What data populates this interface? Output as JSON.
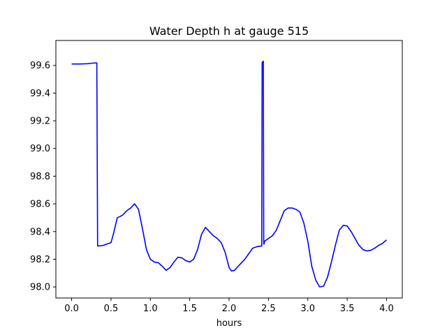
{
  "chart_data": {
    "type": "line",
    "title": "Water Depth h at gauge 515",
    "xlabel": "hours",
    "ylabel": "",
    "xlim": [
      -0.2,
      4.2
    ],
    "ylim": [
      97.92,
      99.78
    ],
    "xticks": [
      0.0,
      0.5,
      1.0,
      1.5,
      2.0,
      2.5,
      3.0,
      3.5,
      4.0
    ],
    "xtick_labels": [
      "0.0",
      "0.5",
      "1.0",
      "1.5",
      "2.0",
      "2.5",
      "3.0",
      "3.5",
      "4.0"
    ],
    "yticks": [
      98.0,
      98.2,
      98.4,
      98.6,
      98.8,
      99.0,
      99.2,
      99.4,
      99.6
    ],
    "ytick_labels": [
      "98.0",
      "98.2",
      "98.4",
      "98.6",
      "98.8",
      "99.0",
      "99.2",
      "99.4",
      "99.6"
    ],
    "grid": false,
    "series": [
      {
        "color": "#0000ff",
        "x": [
          0.0,
          0.1,
          0.2,
          0.3,
          0.32,
          0.33,
          0.4,
          0.45,
          0.5,
          0.53,
          0.58,
          0.62,
          0.65,
          0.7,
          0.75,
          0.8,
          0.85,
          0.9,
          0.95,
          1.0,
          1.05,
          1.1,
          1.15,
          1.2,
          1.25,
          1.3,
          1.35,
          1.4,
          1.45,
          1.5,
          1.55,
          1.6,
          1.65,
          1.7,
          1.75,
          1.8,
          1.85,
          1.9,
          1.95,
          2.0,
          2.03,
          2.07,
          2.1,
          2.15,
          2.2,
          2.25,
          2.3,
          2.35,
          2.4,
          2.415,
          2.42,
          2.425,
          2.435,
          2.44,
          2.445,
          2.45,
          2.5,
          2.55,
          2.6,
          2.65,
          2.7,
          2.75,
          2.8,
          2.85,
          2.9,
          2.95,
          3.0,
          3.05,
          3.1,
          3.15,
          3.2,
          3.25,
          3.3,
          3.35,
          3.4,
          3.45,
          3.5,
          3.55,
          3.6,
          3.65,
          3.7,
          3.75,
          3.8,
          3.85,
          3.9,
          3.95,
          4.0
        ],
        "values": [
          99.61,
          99.61,
          99.612,
          99.618,
          99.618,
          98.295,
          98.3,
          98.31,
          98.32,
          98.38,
          98.5,
          98.51,
          98.52,
          98.55,
          98.57,
          98.6,
          98.56,
          98.42,
          98.27,
          98.2,
          98.18,
          98.175,
          98.15,
          98.12,
          98.14,
          98.18,
          98.215,
          98.21,
          98.19,
          98.18,
          98.2,
          98.27,
          98.38,
          98.43,
          98.4,
          98.37,
          98.35,
          98.32,
          98.25,
          98.14,
          98.115,
          98.12,
          98.14,
          98.17,
          98.2,
          98.24,
          98.28,
          98.29,
          98.295,
          98.295,
          99.62,
          99.625,
          99.63,
          98.31,
          98.31,
          98.33,
          98.35,
          98.37,
          98.41,
          98.48,
          98.55,
          98.57,
          98.57,
          98.56,
          98.54,
          98.46,
          98.33,
          98.15,
          98.05,
          98.0,
          98.005,
          98.07,
          98.18,
          98.3,
          98.41,
          98.445,
          98.44,
          98.4,
          98.35,
          98.3,
          98.27,
          98.26,
          98.265,
          98.28,
          98.3,
          98.315,
          98.34
        ]
      }
    ]
  }
}
